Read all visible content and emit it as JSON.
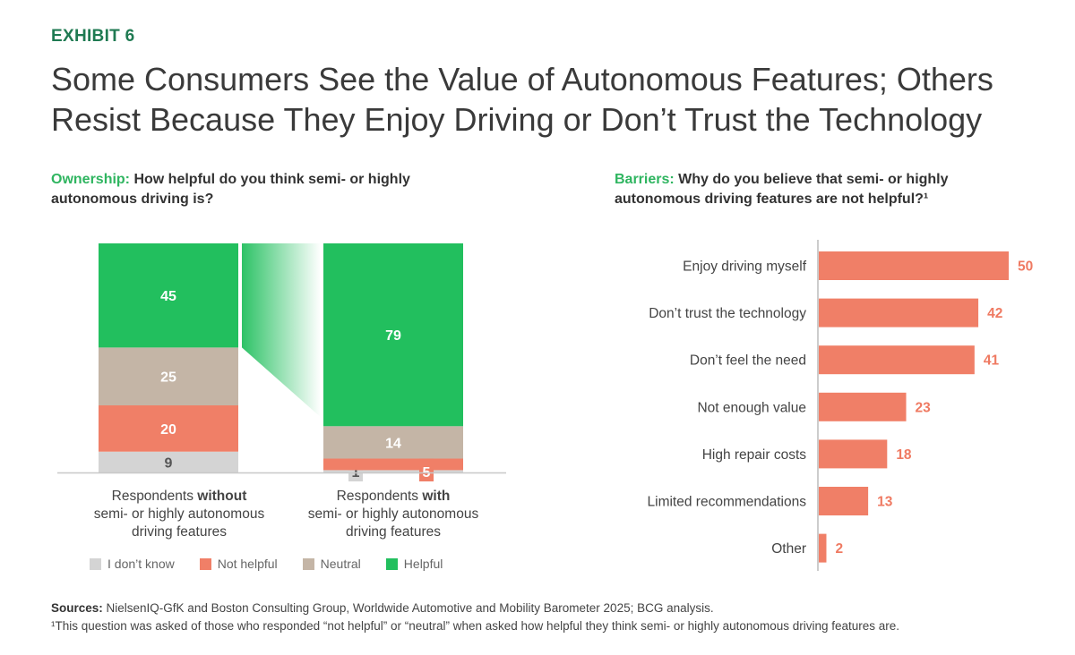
{
  "header": {
    "exhibit": "EXHIBIT 6",
    "title_line1": "Some Consumers See the Value of Autonomous Features; Others",
    "title_line2": "Resist Because They Enjoy Driving or Don’t Trust the Technology"
  },
  "left_panel": {
    "lead": "Ownership:",
    "question": " How helpful do you think semi- or highly autonomous driving is?"
  },
  "right_panel": {
    "lead": "Barriers:",
    "question": " Why do you believe that semi- or highly autonomous driving features are not helpful?¹"
  },
  "colors": {
    "helpful": "#22bf5e",
    "neutral": "#c4b5a6",
    "not_helpful": "#f07f67",
    "dont_know": "#d4d4d4",
    "barrier_bar": "#f07f67",
    "barrier_value": "#ef7a62"
  },
  "chart_data": [
    {
      "type": "bar",
      "subtype": "stacked-100",
      "title": "How helpful do you think semi- or highly autonomous driving is?",
      "categories": [
        {
          "pre": "Respondents ",
          "bold": "without",
          "post": "semi- or highly autonomous driving features"
        },
        {
          "pre": "Respondents ",
          "bold": "with",
          "post": "semi- or highly autonomous driving features"
        }
      ],
      "series": [
        {
          "name": "I don’t know",
          "key": "dont_know",
          "values": [
            9,
            1
          ]
        },
        {
          "name": "Not helpful",
          "key": "not_helpful",
          "values": [
            20,
            5
          ]
        },
        {
          "name": "Neutral",
          "key": "neutral",
          "values": [
            25,
            14
          ]
        },
        {
          "name": "Helpful",
          "key": "helpful",
          "values": [
            45,
            79
          ]
        }
      ],
      "unit": "%",
      "legend_position": "bottom",
      "ylim": [
        0,
        100
      ]
    },
    {
      "type": "bar",
      "orientation": "horizontal",
      "title": "Why do you believe that semi- or highly autonomous driving features are not helpful?",
      "categories": [
        "Enjoy driving myself",
        "Don’t trust the technology",
        "Don’t feel the need",
        "Not enough value",
        "High repair costs",
        "Limited recommendations",
        "Other"
      ],
      "values": [
        50,
        42,
        41,
        23,
        18,
        13,
        2
      ],
      "unit": "%",
      "xlim": [
        0,
        50
      ]
    }
  ],
  "footer": {
    "sources_label": "Sources:",
    "sources_text": " NielsenIQ-GfK and Boston Consulting Group, Worldwide Automotive and Mobility Barometer 2025; BCG analysis.",
    "footnote": "¹This question was asked of those who responded “not helpful” or “neutral” when asked how helpful they think semi- or highly autonomous driving features are."
  }
}
